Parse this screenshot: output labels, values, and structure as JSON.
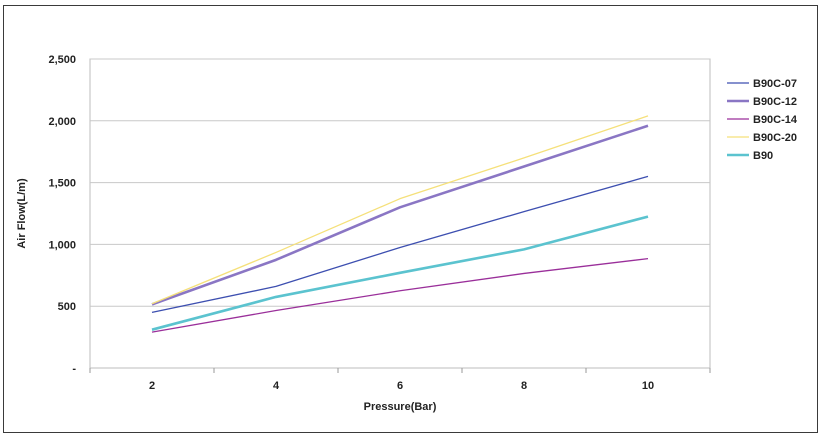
{
  "chart_data": {
    "type": "line",
    "xlabel": "Pressure(Bar)",
    "ylabel": "Air Flow(L/m)",
    "x": [
      2,
      4,
      6,
      8,
      10
    ],
    "x_tick_labels": [
      "2",
      "4",
      "6",
      "8",
      "10"
    ],
    "ylim": [
      0,
      2500
    ],
    "y_ticks": [
      0,
      500,
      1000,
      1500,
      2000,
      2500
    ],
    "y_tick_labels": [
      "-",
      "500",
      "1,000",
      "1,500",
      "2,000",
      "2,500"
    ],
    "grid": "horizontal",
    "legend_position": "right",
    "series": [
      {
        "name": "B90C-07",
        "color": "#3d4fb0",
        "values": [
          450,
          660,
          975,
          1265,
          1550
        ]
      },
      {
        "name": "B90C-12",
        "color": "#8a76c4",
        "values": [
          515,
          875,
          1300,
          1630,
          1960
        ]
      },
      {
        "name": "B90C-14",
        "color": "#9a2f9a",
        "values": [
          290,
          465,
          625,
          765,
          885
        ]
      },
      {
        "name": "B90C-20",
        "color": "#f5e07a",
        "values": [
          520,
          935,
          1370,
          1700,
          2040
        ]
      },
      {
        "name": "B90",
        "color": "#5bc3cf",
        "values": [
          310,
          575,
          770,
          960,
          1225
        ]
      }
    ]
  }
}
